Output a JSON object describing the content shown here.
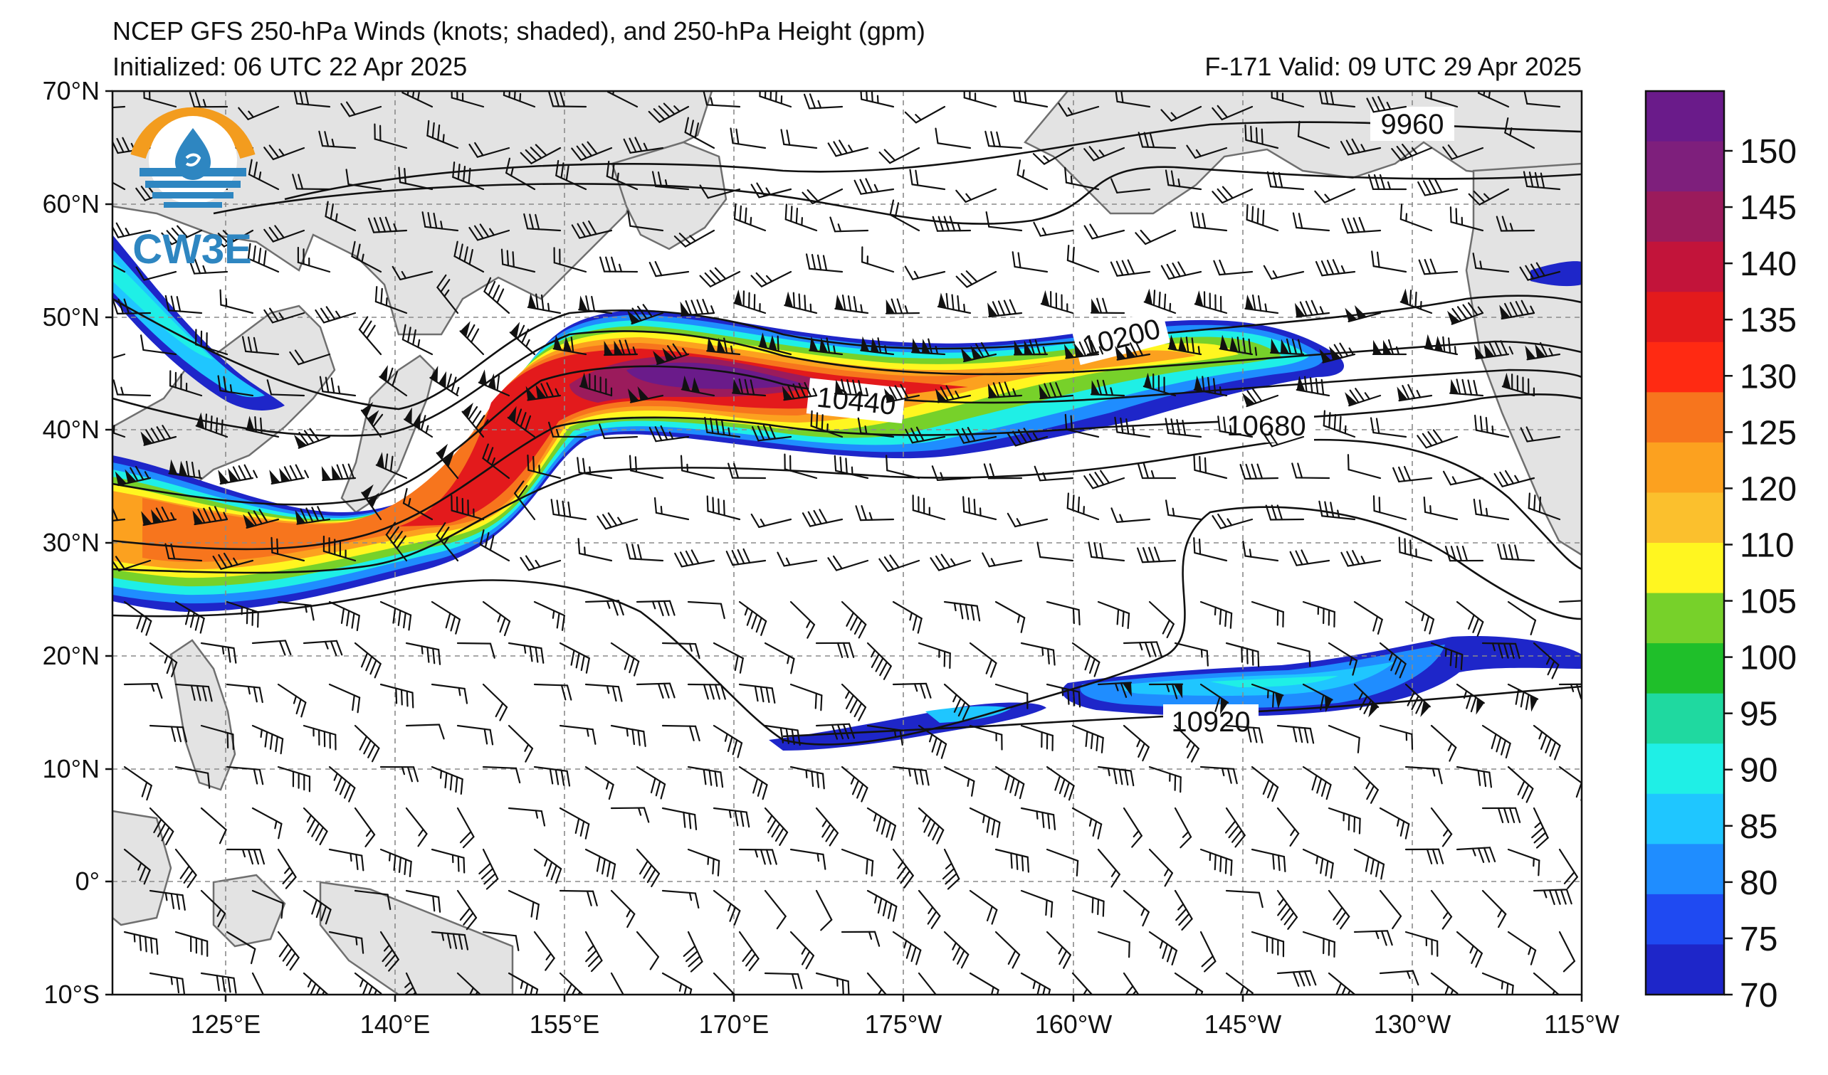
{
  "header": {
    "title": "NCEP GFS 250-hPa Winds (knots; shaded), and 250-hPa Height (gpm)",
    "initialized": "Initialized: 06 UTC 22 Apr 2025",
    "valid": "F-171  Valid: 09 UTC 29 Apr 2025"
  },
  "logo": {
    "text": "CW3E",
    "orange": "#f39c1e",
    "blue": "#2e86c1"
  },
  "axes": {
    "lat_labels": [
      "70°N",
      "60°N",
      "50°N",
      "40°N",
      "30°N",
      "20°N",
      "10°N",
      "0°",
      "10°S"
    ],
    "lon_labels": [
      "125°E",
      "140°E",
      "155°E",
      "170°E",
      "175°W",
      "160°W",
      "145°W",
      "130°W",
      "115°W"
    ]
  },
  "contour_labels": [
    "9960",
    "10200",
    "10440",
    "10680",
    "10920"
  ],
  "colorbar": {
    "ticks": [
      "150",
      "145",
      "140",
      "135",
      "130",
      "125",
      "120",
      "110",
      "105",
      "100",
      "95",
      "90",
      "85",
      "80",
      "75",
      "70"
    ],
    "colors": [
      "#6a1b8a",
      "#7e1f7c",
      "#9b1b5c",
      "#c2143a",
      "#e31a1c",
      "#ff2a12",
      "#f7751d",
      "#fca11f",
      "#fbc02d",
      "#fff620",
      "#77d12a",
      "#1fbf2a",
      "#1fd9a0",
      "#1fefe6",
      "#1fc6ff",
      "#1f8dff",
      "#1f4af2",
      "#1e26c9"
    ]
  }
}
